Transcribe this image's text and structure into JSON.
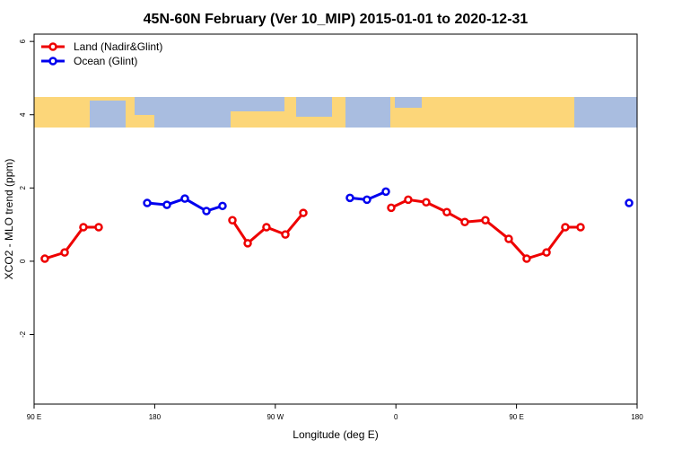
{
  "chart_data": {
    "type": "line",
    "title": "45N-60N February (Ver 10_MIP)   2015-01-01 to 2020-12-31",
    "x_label": "Longitude (deg E)",
    "y_label": "XCO2 - MLO trend (ppm)",
    "xlim": [
      90,
      540
    ],
    "ylim": [
      -3.9,
      6.2
    ],
    "xticks": [
      {
        "value": 90,
        "label": "90 E"
      },
      180,
      {
        "value": 270,
        "label": "90 W"
      },
      {
        "value": 360,
        "label": "0"
      },
      {
        "value": 450,
        "label": "90 E"
      },
      {
        "value": 540,
        "label": "180"
      }
    ],
    "yticks": [
      -2,
      0,
      2,
      4,
      6
    ],
    "legend": "top-left",
    "series": [
      {
        "name": "Land (Nadir&Glint)",
        "color": "#ee0000",
        "x": [
          98.0,
          112.8,
          126.8,
          138.2,
          null,
          238.0,
          249.4,
          263.4,
          277.5,
          290.9,
          null,
          356.5,
          369.2,
          382.6,
          398.0,
          411.4,
          426.8,
          444.2,
          457.6,
          472.4,
          486.4,
          497.8
        ],
        "values": [
          0.07,
          0.24,
          0.93,
          0.93,
          null,
          1.12,
          0.49,
          0.93,
          0.73,
          1.32,
          null,
          1.46,
          1.68,
          1.61,
          1.34,
          1.07,
          1.12,
          0.61,
          0.07,
          0.24,
          0.93,
          0.93
        ]
      },
      {
        "name": "Ocean (Glint)",
        "color": "#0000ee",
        "x": [
          174.4,
          189.1,
          202.5,
          218.6,
          230.6,
          null,
          325.7,
          338.4,
          352.5,
          null,
          534.0
        ],
        "values": [
          1.59,
          1.54,
          1.71,
          1.37,
          1.51,
          null,
          1.73,
          1.68,
          1.9,
          null,
          1.59
        ]
      }
    ]
  }
}
